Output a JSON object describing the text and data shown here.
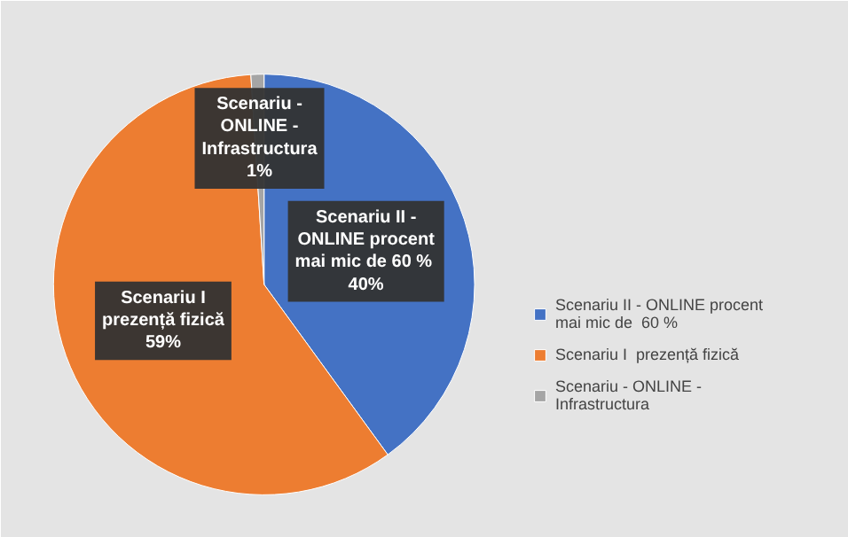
{
  "chart_data": {
    "type": "pie",
    "categories": [
      "Scenariu II - ONLINE procent mai mic de  60 %",
      "Scenariu I  prezență fizică",
      "Scenariu - ONLINE - Infrastructura"
    ],
    "values": [
      40,
      59,
      1
    ],
    "colors": [
      "#4472c4",
      "#ed7d31",
      "#a5a5a5"
    ],
    "value_labels": [
      "40%",
      "59%",
      "1%"
    ],
    "legend": "right"
  }
}
